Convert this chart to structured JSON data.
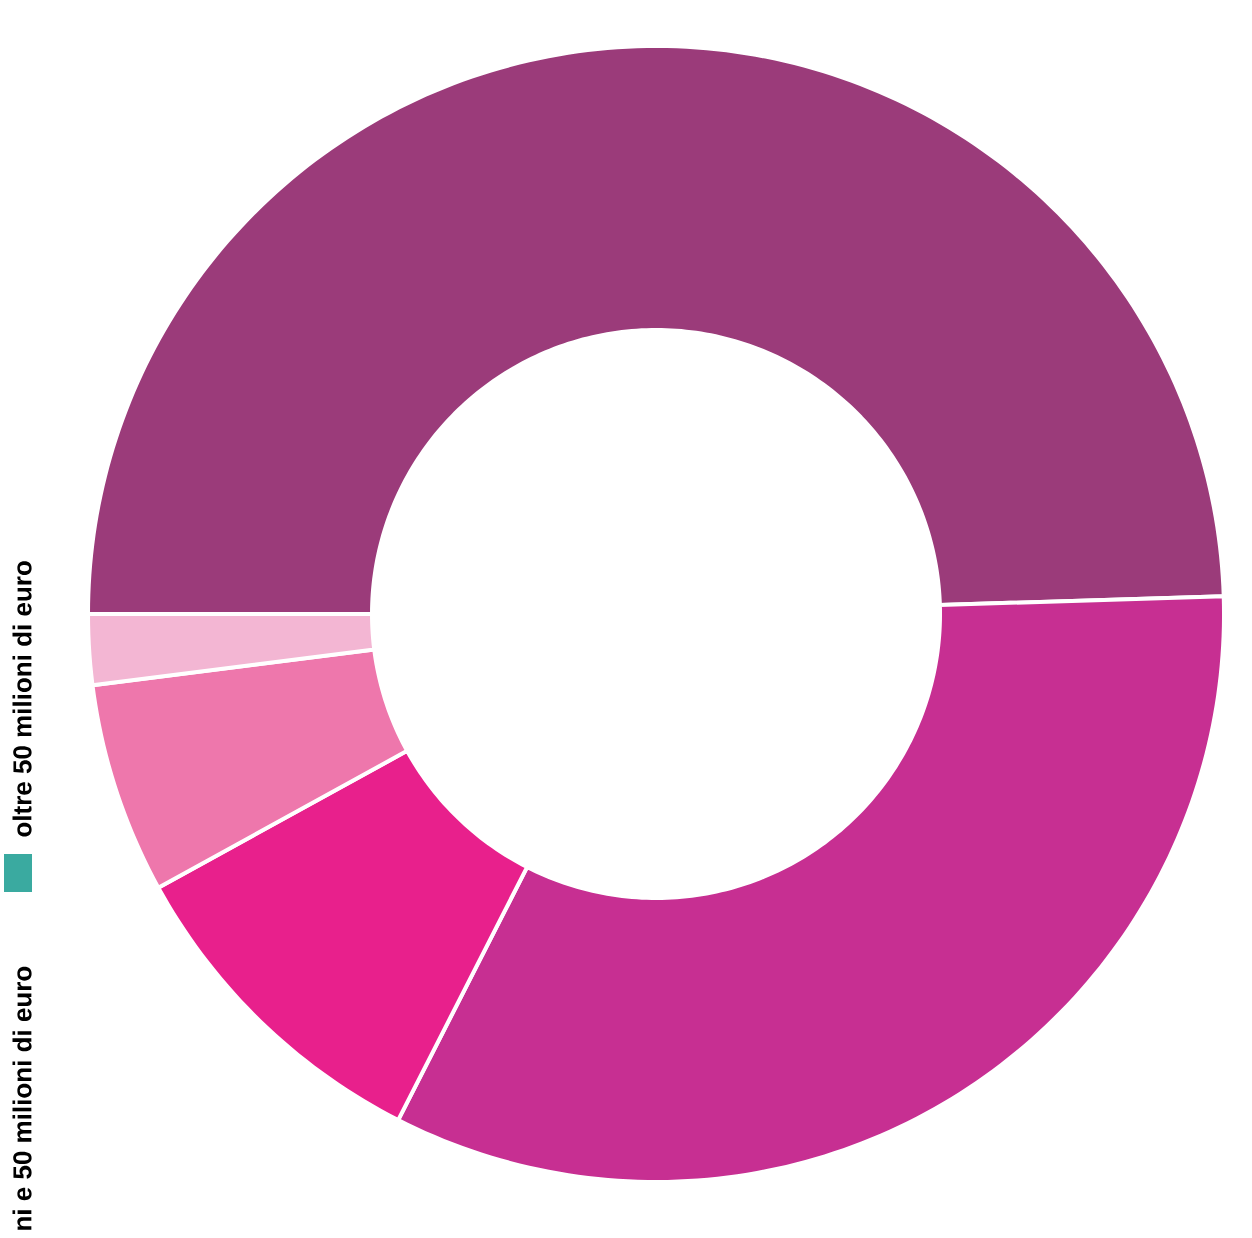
{
  "chart_data": {
    "type": "donut",
    "categories": [
      null,
      null,
      null,
      null,
      null
    ],
    "values": [
      49.5,
      33,
      9.5,
      6,
      2
    ],
    "colors": [
      "#9b3b7a",
      "#c72f92",
      "#e8208c",
      "#ee77ac",
      "#f3b6d3"
    ],
    "annotations": [
      "ni e 50 milioni di euro",
      "oltre 50 milioni di euro"
    ]
  }
}
